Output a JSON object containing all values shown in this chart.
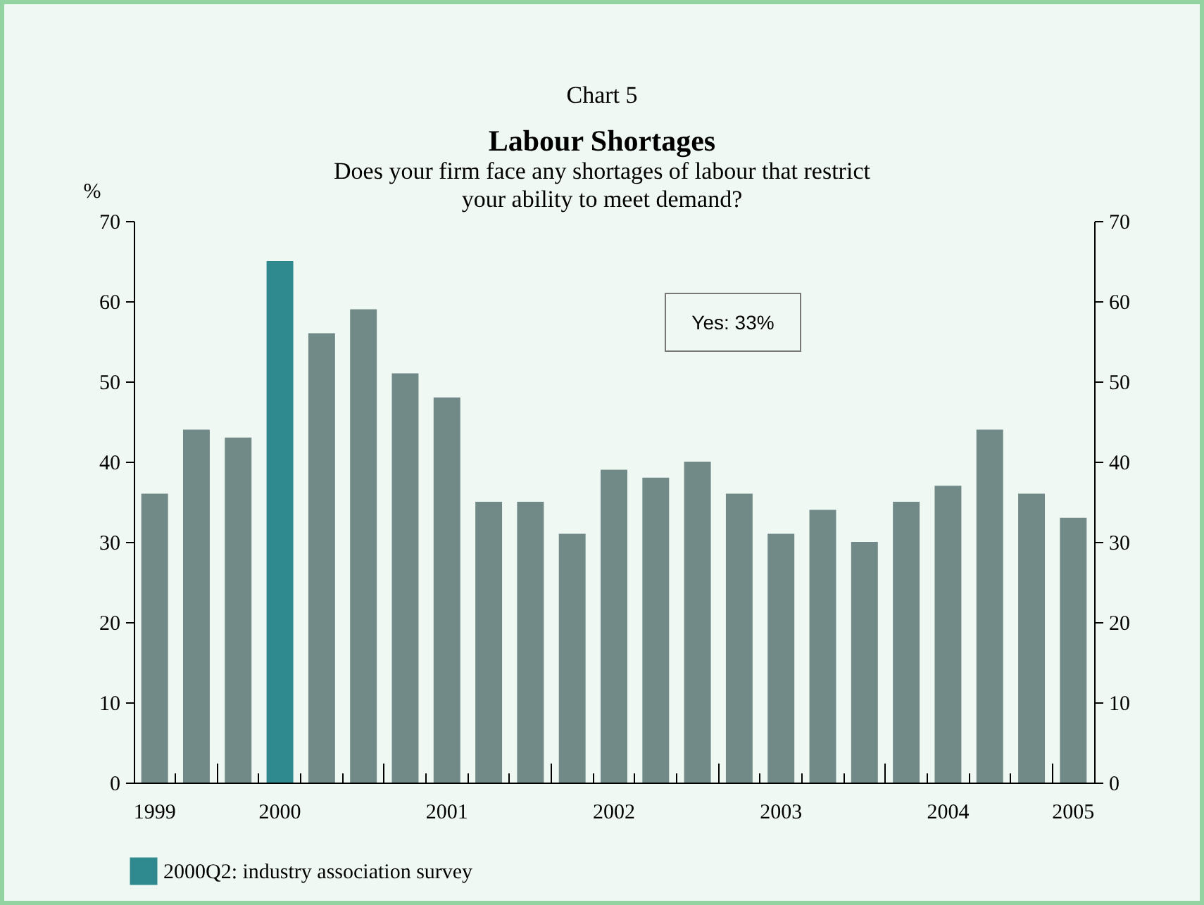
{
  "chart_data": {
    "type": "bar",
    "title": "Labour Shortages",
    "subtitle": "Does your firm face any shortages of labour that restrict your ability to meet demand?",
    "ylabel": "%",
    "annotations": [
      "Chart 5",
      "Yes: 33%"
    ],
    "categories": [
      "1999",
      null,
      null,
      "2000",
      null,
      null,
      null,
      "2001",
      null,
      null,
      null,
      "2002",
      null,
      null,
      null,
      "2003",
      null,
      null,
      null,
      "2004",
      null,
      null,
      "2005"
    ],
    "series": [
      {
        "color": "#728a87",
        "values": [
          36,
          44,
          43,
          null,
          56,
          59,
          51,
          48,
          35,
          35,
          31,
          39,
          38,
          40,
          36,
          31,
          34,
          30,
          35,
          37,
          44,
          36,
          33
        ]
      },
      {
        "name": "2000Q2: industry association survey",
        "color": "#2e8a8e",
        "values": [
          null,
          null,
          null,
          65,
          null,
          null,
          null,
          null,
          null,
          null,
          null,
          null,
          null,
          null,
          null,
          null,
          null,
          null,
          null,
          null,
          null,
          null,
          null
        ]
      }
    ],
    "ylim": [
      0,
      70
    ],
    "yticks": [
      0,
      10,
      20,
      30,
      40,
      50,
      60,
      70
    ],
    "y2lim": [
      0,
      70
    ],
    "y2ticks": [
      0,
      10,
      20,
      30,
      40,
      50,
      60,
      70
    ],
    "legend": "bottom left"
  }
}
